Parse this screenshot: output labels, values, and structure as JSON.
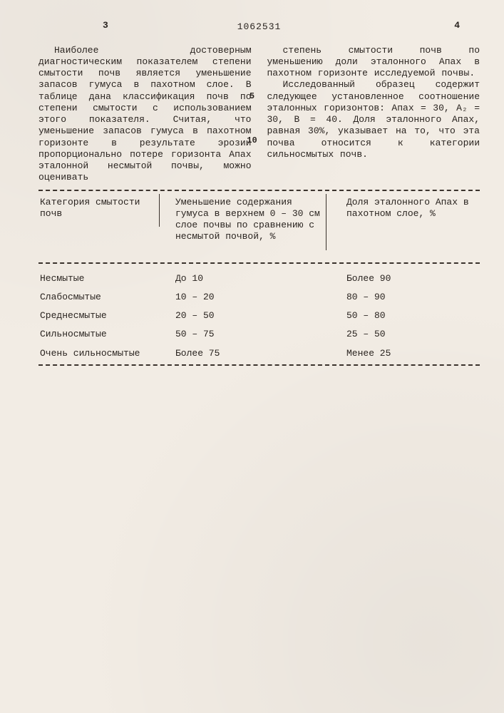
{
  "header": {
    "page_left": "3",
    "doc_number": "1062531",
    "page_right": "4"
  },
  "line_numbers": {
    "n5": "5",
    "n10": "10"
  },
  "paragraphs": {
    "left": "Наиболее достоверным диагностическим показателем степени смытости почв является уменьшение запасов гумуса в пахотном слое. В таблице дана классификация почв по степени смытости с использованием этого показателя. Считая, что уменьшение запасов гумуса в пахотном горизонте в результате эрозии пропорционально потере горизонта Aпах эталонной несмытой почвы, можно оценивать",
    "right1": "степень смытости почв по уменьшению доли эталонного Aпах в пахотном горизонте исследуемой почвы.",
    "right2": "Исследованный образец содержит следующее установленное соотношение эталонных горизонтов: Aпах = 30, A₂ = 30, B = 40. Доля эталонного Aпах, равная 30%, указывает на то, что эта почва относится к категории сильносмытых почв."
  },
  "table": {
    "columns": {
      "c1": "Категория смытости почв",
      "c2": "Уменьшение содержания гумуса в верхнем 0 – 30 см слое почвы по сравнению с несмытой почвой, %",
      "c3": "Доля эталонного Aпах в пахотном слое, %"
    },
    "rows": [
      {
        "c1": "Несмытые",
        "c2": "До 10",
        "c3": "Более 90"
      },
      {
        "c1": "Слабосмытые",
        "c2": "10 – 20",
        "c3": "80 – 90"
      },
      {
        "c1": "Среднесмытые",
        "c2": "20 – 50",
        "c3": "50 – 80"
      },
      {
        "c1": "Сильносмытые",
        "c2": "50 – 75",
        "c3": "25 – 50"
      },
      {
        "c1": "Очень сильносмытые",
        "c2": "Более 75",
        "c3": "Менее 25"
      }
    ]
  }
}
